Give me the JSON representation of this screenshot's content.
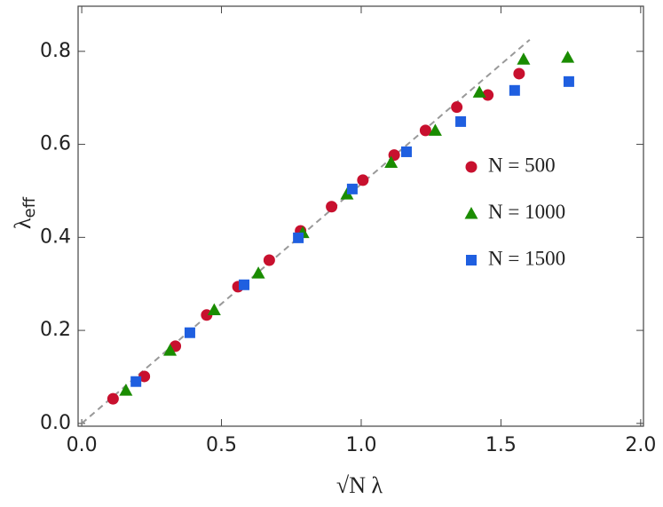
{
  "chart_data": {
    "type": "scatter",
    "xlabel": "√N λ",
    "ylabel": "λ",
    "ylabel_sub": "eff",
    "xlim": [
      -0.013,
      2.01
    ],
    "ylim": [
      -0.006,
      0.897
    ],
    "xticks": [
      {
        "value": 0,
        "label": "0.0"
      },
      0.5,
      {
        "value": 1,
        "label": "1.0"
      },
      1.5,
      {
        "value": 2,
        "label": "2.0"
      }
    ],
    "yticks": [
      {
        "value": 0,
        "label": "0.0"
      },
      0.2,
      0.4,
      0.6,
      0.8
    ],
    "reference_line": {
      "color": "#999999",
      "x": [
        0,
        1.603
      ],
      "y": [
        0,
        0.825
      ]
    },
    "series": [
      {
        "name": "N = 500",
        "color": "#c8102e",
        "marker": "circle",
        "x": [
          0.112,
          0.224,
          0.335,
          0.447,
          0.559,
          0.671,
          0.783,
          0.894,
          1.006,
          1.118,
          1.23,
          1.342,
          1.453,
          1.565
        ],
        "values": [
          0.053,
          0.101,
          0.166,
          0.233,
          0.294,
          0.351,
          0.414,
          0.466,
          0.523,
          0.577,
          0.63,
          0.68,
          0.706,
          0.752
        ]
      },
      {
        "name": "N = 1000",
        "color": "#1a8c00",
        "marker": "triangle",
        "x": [
          0.158,
          0.316,
          0.474,
          0.632,
          0.791,
          0.949,
          1.107,
          1.265,
          1.423,
          1.581,
          1.739
        ],
        "values": [
          0.071,
          0.157,
          0.244,
          0.323,
          0.41,
          0.493,
          0.561,
          0.63,
          0.712,
          0.783,
          0.787
        ]
      },
      {
        "name": "N = 1500",
        "color": "#1f5fe0",
        "marker": "square",
        "x": [
          0.194,
          0.387,
          0.581,
          0.775,
          0.968,
          1.162,
          1.356,
          1.549,
          1.743
        ],
        "values": [
          0.09,
          0.195,
          0.298,
          0.399,
          0.504,
          0.584,
          0.649,
          0.716,
          0.735
        ]
      }
    ]
  }
}
